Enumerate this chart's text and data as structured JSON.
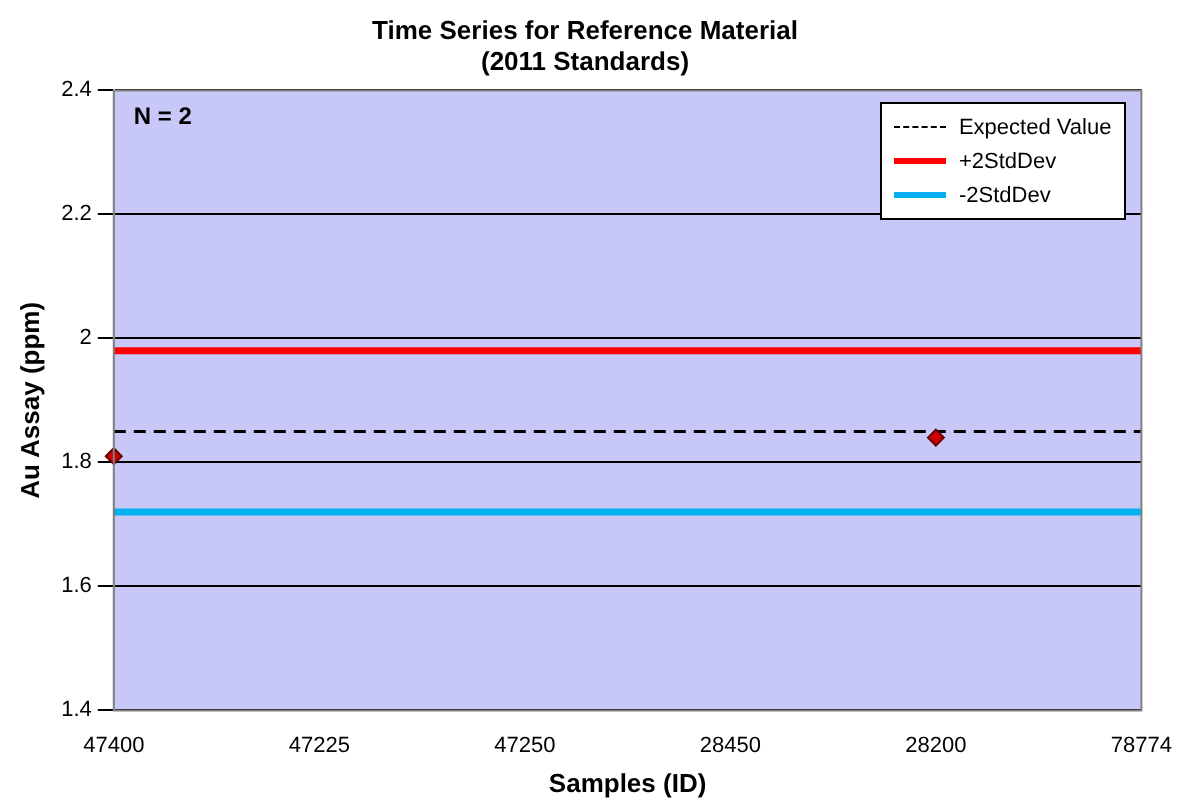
{
  "chart_data": {
    "type": "line",
    "title": "Time Series for Reference Material",
    "subtitle": "(2011 Standards)",
    "xlabel": "Samples (ID)",
    "ylabel": "Au Assay (ppm)",
    "categories": [
      "47400",
      "47225",
      "47250",
      "28450",
      "28200",
      "78774"
    ],
    "series": [
      {
        "type": "scatter",
        "color": "#cc0000",
        "values": [
          1.81,
          null,
          null,
          null,
          1.84,
          null
        ],
        "marker": "diamond",
        "line_style": "solid"
      },
      {
        "name": "Expected Value",
        "color": "#000000",
        "values": [
          1.85,
          1.85,
          1.85,
          1.85,
          1.85,
          1.85
        ],
        "marker": "none",
        "line_style": "dashed"
      },
      {
        "name": "+2StdDev",
        "color": "#ff0000",
        "values": [
          1.98,
          1.98,
          1.98,
          1.98,
          1.98,
          1.98
        ],
        "marker": "none",
        "line_style": "solid"
      },
      {
        "name": "-2StdDev",
        "color": "#00b0f0",
        "values": [
          1.72,
          1.72,
          1.72,
          1.72,
          1.72,
          1.72
        ],
        "marker": "none",
        "line_style": "solid"
      }
    ],
    "ylim": [
      1.4,
      2.4
    ],
    "yticks": [
      1.4,
      1.6,
      1.8,
      2,
      2.2,
      2.4
    ],
    "grid": "y",
    "legend": "top right",
    "annotations": [
      "N = 2"
    ]
  }
}
